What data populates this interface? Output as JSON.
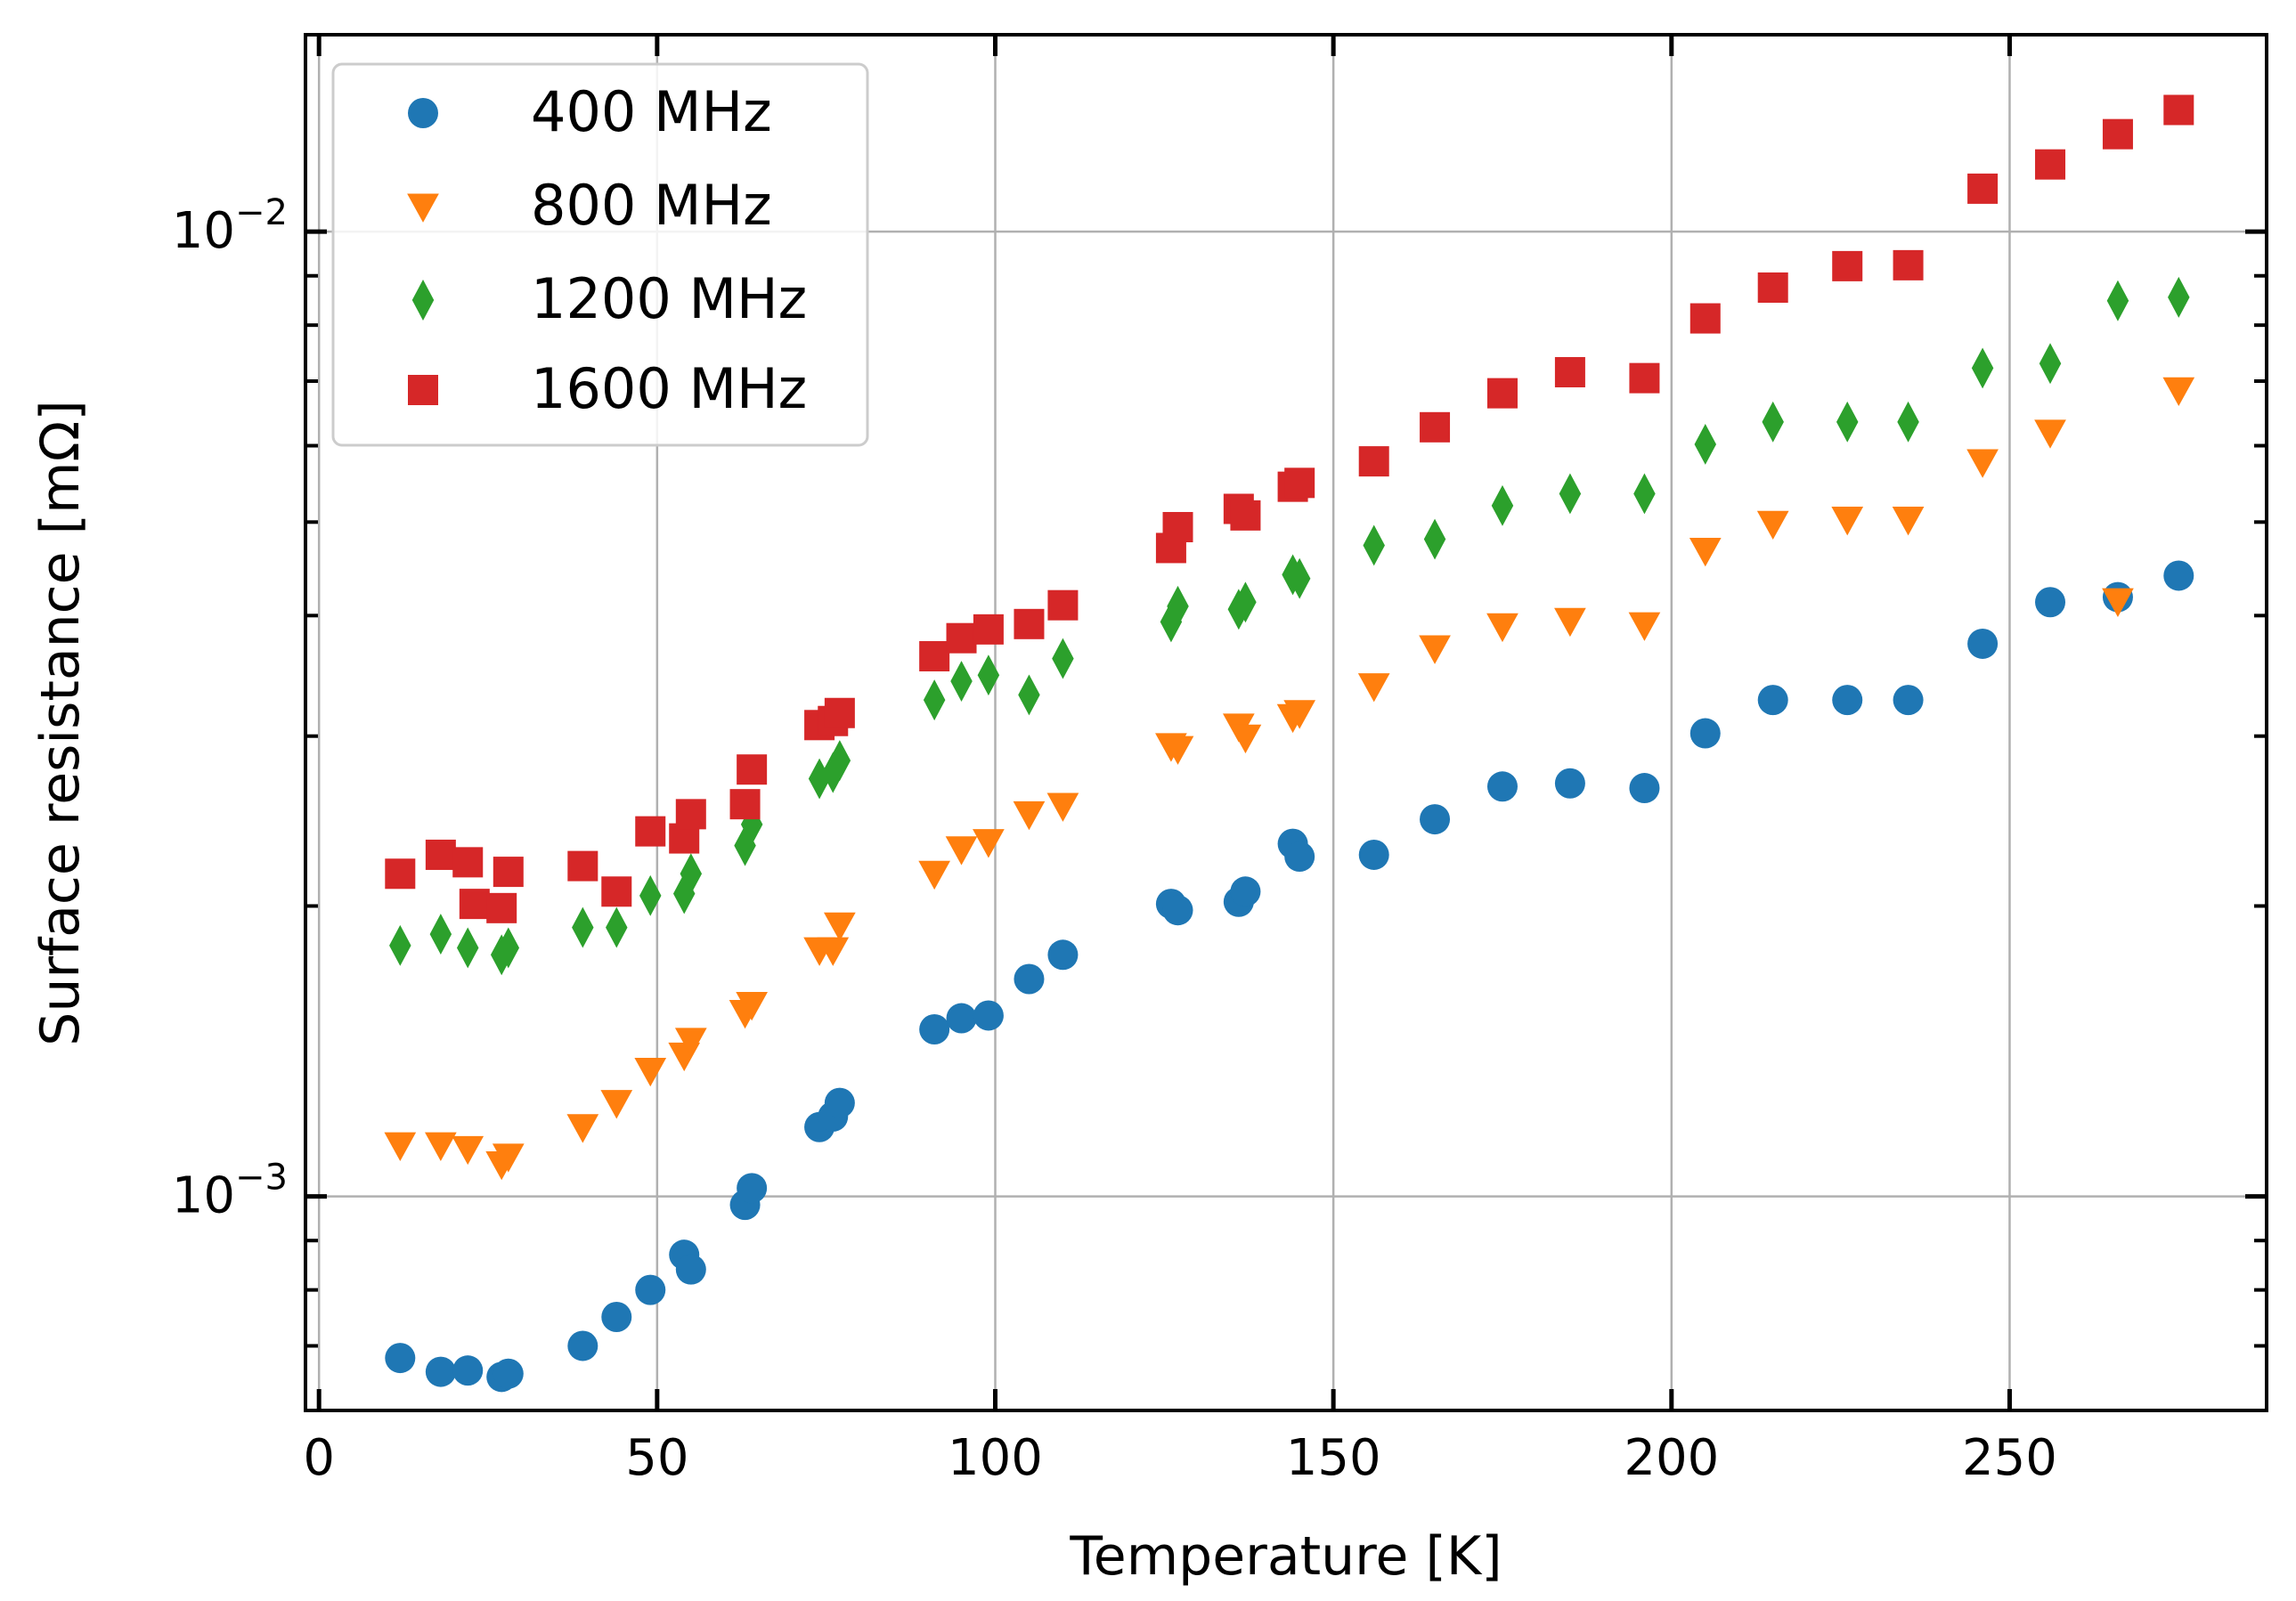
{
  "chart_data": {
    "type": "scatter",
    "title": "",
    "xlabel": "Temperature [K]",
    "ylabel": "Surface resistance [mΩ]",
    "xlim": [
      -2,
      288
    ],
    "ylim": [
      0.0006,
      0.016
    ],
    "yscale": "log",
    "grid": true,
    "legend_position": "upper-left",
    "x_ticks": [
      0,
      50,
      100,
      150,
      200,
      250
    ],
    "x_tick_labels": [
      "0",
      "50",
      "100",
      "150",
      "200",
      "250"
    ],
    "y_major_ticks": [
      0.001,
      0.01
    ],
    "y_major_labels": [
      {
        "base": "10",
        "exp": "−3"
      },
      {
        "base": "10",
        "exp": "−2"
      }
    ],
    "y_minor_ticks": [
      0.0006,
      0.0007,
      0.0008,
      0.0009,
      0.002,
      0.003,
      0.004,
      0.005,
      0.006,
      0.007,
      0.008,
      0.009
    ],
    "series": [
      {
        "name": "400 MHz",
        "marker": "circle",
        "color": "#1f77b4",
        "x": [
          12,
          18,
          22,
          27,
          28,
          39,
          44,
          49,
          54,
          55,
          63,
          64,
          74,
          76,
          77,
          91,
          95,
          99,
          105,
          110,
          126,
          127,
          136,
          137,
          144,
          145,
          156,
          165,
          175,
          185,
          196,
          205,
          215,
          226,
          235,
          246,
          256,
          266,
          275
        ],
        "y": [
          0.00068,
          0.000658,
          0.00066,
          0.00065,
          0.000655,
          0.0007,
          0.00075,
          0.0008,
          0.00087,
          0.00084,
          0.00098,
          0.00102,
          0.00118,
          0.00121,
          0.00125,
          0.00149,
          0.00153,
          0.00154,
          0.00168,
          0.00178,
          0.00201,
          0.00198,
          0.00202,
          0.00207,
          0.00232,
          0.00225,
          0.00226,
          0.00246,
          0.00266,
          0.00268,
          0.00265,
          0.00302,
          0.00327,
          0.00327,
          0.00327,
          0.00374,
          0.00413,
          0.00418,
          0.0044
        ]
      },
      {
        "name": "800 MHz",
        "marker": "triangle-down",
        "color": "#ff7f0e",
        "x": [
          12,
          18,
          22,
          27,
          28,
          39,
          44,
          49,
          54,
          55,
          63,
          64,
          74,
          76,
          77,
          91,
          95,
          99,
          105,
          110,
          126,
          127,
          136,
          137,
          144,
          145,
          156,
          165,
          175,
          185,
          196,
          205,
          215,
          226,
          235,
          246,
          256,
          266,
          275
        ],
        "y": [
          0.00113,
          0.00113,
          0.00112,
          0.00108,
          0.0011,
          0.00118,
          0.00125,
          0.00135,
          0.0014,
          0.00145,
          0.00155,
          0.00158,
          0.0018,
          0.0018,
          0.00191,
          0.00216,
          0.00229,
          0.00233,
          0.00249,
          0.00254,
          0.00293,
          0.00291,
          0.00307,
          0.00299,
          0.00314,
          0.00317,
          0.00338,
          0.0037,
          0.0039,
          0.00395,
          0.00391,
          0.00467,
          0.00498,
          0.00503,
          0.00503,
          0.00577,
          0.00619,
          0.00414,
          0.00685
        ]
      },
      {
        "name": "1200 MHz",
        "marker": "diamond",
        "color": "#2ca02c",
        "x": [
          12,
          18,
          22,
          27,
          28,
          39,
          44,
          49,
          54,
          55,
          63,
          64,
          74,
          76,
          77,
          91,
          95,
          99,
          105,
          110,
          126,
          127,
          136,
          137,
          144,
          145,
          156,
          165,
          175,
          185,
          196,
          205,
          215,
          226,
          235,
          246,
          256,
          266,
          275
        ],
        "y": [
          0.00182,
          0.00187,
          0.00181,
          0.00178,
          0.00181,
          0.0019,
          0.0019,
          0.00205,
          0.00206,
          0.00216,
          0.00231,
          0.00243,
          0.00271,
          0.00275,
          0.00283,
          0.00327,
          0.00342,
          0.00347,
          0.00331,
          0.00361,
          0.00394,
          0.00409,
          0.00406,
          0.00413,
          0.00441,
          0.00437,
          0.00473,
          0.0048,
          0.0052,
          0.00535,
          0.00535,
          0.00602,
          0.00635,
          0.00635,
          0.00635,
          0.00722,
          0.0073,
          0.00848,
          0.00855
        ]
      },
      {
        "name": "1600 MHz",
        "marker": "square",
        "color": "#d62728",
        "x": [
          12,
          18,
          22,
          23,
          27,
          28,
          39,
          44,
          49,
          54,
          55,
          63,
          64,
          74,
          76,
          77,
          91,
          95,
          99,
          105,
          110,
          126,
          127,
          136,
          137,
          144,
          145,
          156,
          165,
          175,
          185,
          196,
          205,
          215,
          226,
          235,
          246,
          256,
          266,
          275
        ],
        "y": [
          0.00216,
          0.00226,
          0.00222,
          0.00201,
          0.00199,
          0.00217,
          0.0022,
          0.00207,
          0.00239,
          0.00235,
          0.00249,
          0.00255,
          0.00277,
          0.00308,
          0.00311,
          0.00317,
          0.00363,
          0.00379,
          0.00387,
          0.00392,
          0.0041,
          0.0047,
          0.00494,
          0.00516,
          0.00508,
          0.00544,
          0.00549,
          0.00578,
          0.00627,
          0.0068,
          0.00715,
          0.00705,
          0.00813,
          0.00875,
          0.00921,
          0.00923,
          0.01108,
          0.01174,
          0.01262,
          0.01337
        ]
      }
    ]
  }
}
